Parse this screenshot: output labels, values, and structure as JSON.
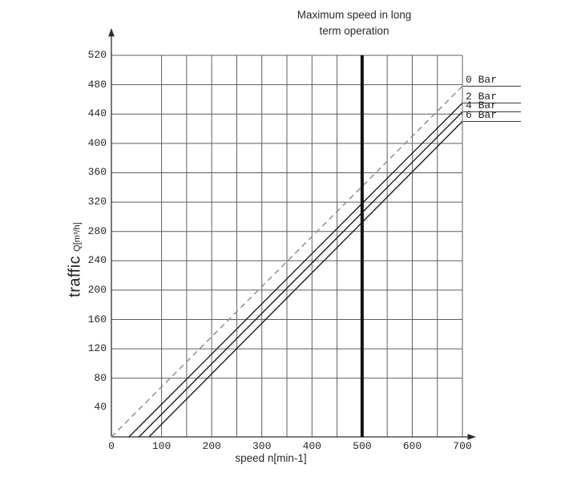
{
  "title": {
    "lines": [
      "Maximum speed in long",
      "term operation"
    ]
  },
  "y_axis": {
    "name": "traffic",
    "unit": "Q[m³/h]",
    "min": 0,
    "max": 520,
    "ticks": [
      40,
      80,
      120,
      160,
      200,
      240,
      280,
      320,
      360,
      400,
      440,
      480,
      520
    ],
    "gridlines": [
      80,
      120,
      160,
      200,
      240,
      280,
      320,
      360,
      400,
      440,
      480,
      520
    ]
  },
  "x_axis": {
    "label": "speed n[min-1]",
    "min": 0,
    "max": 700,
    "ticks": [
      0,
      100,
      200,
      300,
      400,
      500,
      600,
      700
    ],
    "gridlines": [
      100,
      150,
      200,
      250,
      300,
      350,
      400,
      450,
      500,
      550,
      600,
      650,
      700
    ]
  },
  "chart_data": {
    "type": "line",
    "title": "Maximum speed in long term operation",
    "xlabel": "speed n[min-1]",
    "ylabel": "traffic Q[m³/h]",
    "xlim": [
      0,
      700
    ],
    "ylim": [
      0,
      520
    ],
    "x_tick_step": 100,
    "y_tick_step": 40,
    "grid": true,
    "legend_position": "right-edge-underlined-labels",
    "series": [
      {
        "name": "0 Bar",
        "style": "dashed",
        "color": "#8f8f8f",
        "points": [
          [
            0,
            0
          ],
          [
            700,
            478
          ]
        ]
      },
      {
        "name": "2 Bar",
        "style": "solid",
        "color": "#1c1c1c",
        "points": [
          [
            35,
            0
          ],
          [
            700,
            455
          ]
        ]
      },
      {
        "name": "4 Bar",
        "style": "solid",
        "color": "#1c1c1c",
        "points": [
          [
            55,
            0
          ],
          [
            700,
            443
          ]
        ]
      },
      {
        "name": "6 Bar",
        "style": "solid",
        "color": "#1c1c1c",
        "points": [
          [
            75,
            0
          ],
          [
            700,
            430
          ]
        ]
      }
    ],
    "vertical_marker": {
      "x": 500,
      "label": "Maximum speed in long term operation"
    }
  },
  "colors": {
    "background": "#ffffff",
    "grid": "#5f5f5f",
    "axis": "#2e2e2e",
    "marker_line": "#111111",
    "solid_series": "#1c1c1c",
    "dashed_series": "#8f8f8f",
    "text": "#2b2b2b"
  }
}
